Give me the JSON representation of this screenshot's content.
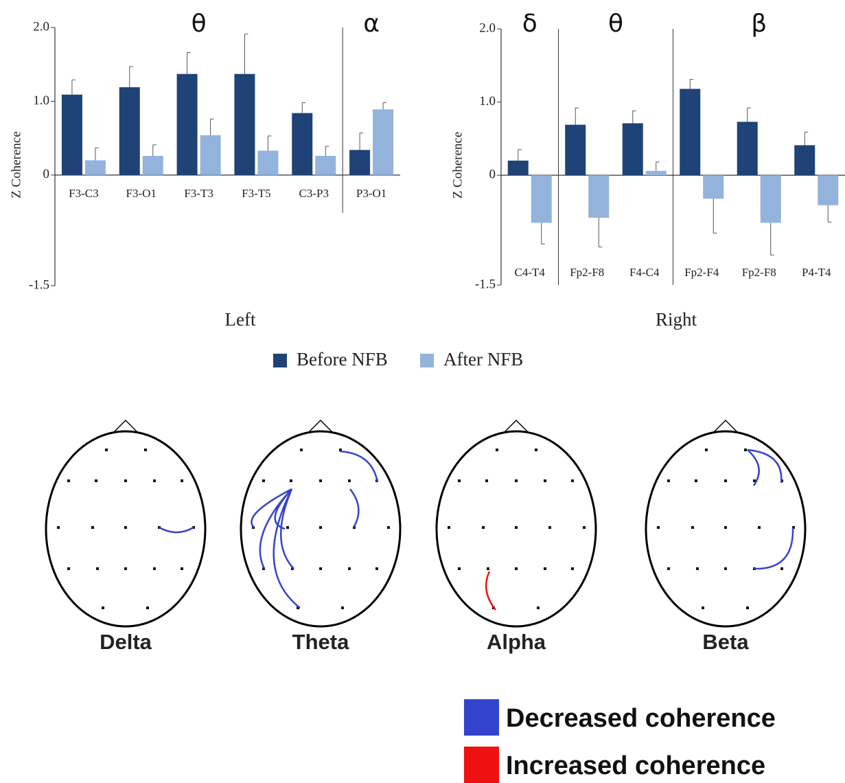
{
  "chart_data": [
    {
      "type": "bar",
      "ylabel": "Z Coherence",
      "xlabel": "Left",
      "bands": [
        {
          "label": "θ",
          "categories": [
            "F3-C3",
            "F3-O1",
            "F3-T3",
            "F3-T5",
            "C3-P3"
          ]
        },
        {
          "label": "α",
          "categories": [
            "P3-O1"
          ]
        }
      ],
      "series": [
        {
          "name": "Before NFB",
          "color": "#1f4277",
          "values": [
            1.09,
            1.19,
            1.37,
            1.37,
            0.84,
            0.34
          ],
          "errors": [
            0.2,
            0.28,
            0.29,
            0.54,
            0.14,
            0.23
          ]
        },
        {
          "name": "After NFB",
          "color": "#93b3dc",
          "values": [
            0.2,
            0.26,
            0.54,
            0.33,
            0.26,
            0.89
          ],
          "errors": [
            0.17,
            0.15,
            0.22,
            0.2,
            0.13,
            0.09
          ]
        }
      ],
      "ylim": [
        -1.5,
        2.0
      ],
      "yticks": [
        {
          "value": 2,
          "label": "2.0"
        },
        {
          "value": 1,
          "label": "1.0"
        },
        0,
        -1.5
      ]
    },
    {
      "type": "bar",
      "ylabel": "Z Coherence",
      "xlabel": "Right",
      "bands": [
        {
          "label": "δ",
          "categories": [
            "C4-T4"
          ]
        },
        {
          "label": "θ",
          "categories": [
            "Fp2-F8",
            "F4-C4"
          ]
        },
        {
          "label": "β",
          "categories": [
            "Fp2-F4",
            "Fp2-F8",
            "P4-T4"
          ]
        }
      ],
      "series": [
        {
          "color": "#1f4277",
          "values": [
            0.2,
            0.69,
            0.71,
            1.18,
            0.73,
            0.41
          ],
          "errors": [
            0.15,
            0.23,
            0.17,
            0.13,
            0.19,
            0.18
          ]
        },
        {
          "color": "#93b3dc",
          "values": [
            -0.65,
            -0.58,
            0.06,
            -0.32,
            -0.65,
            -0.41
          ],
          "errors": [
            0.29,
            0.4,
            0.12,
            0.47,
            0.44,
            0.23
          ]
        }
      ],
      "ylim": [
        -1.5,
        2.0
      ],
      "yticks": [
        {
          "value": 2,
          "label": "2.0"
        },
        {
          "value": 1,
          "label": "1.0"
        },
        0,
        -1.5
      ]
    }
  ],
  "head_maps": [
    "Delta",
    "Theta",
    "Alpha",
    "Beta"
  ],
  "coherence_legend": [
    {
      "label": "Decreased coherence",
      "color": "#3344cc"
    },
    {
      "label": "Increased coherence",
      "color": "#ee1111"
    }
  ]
}
